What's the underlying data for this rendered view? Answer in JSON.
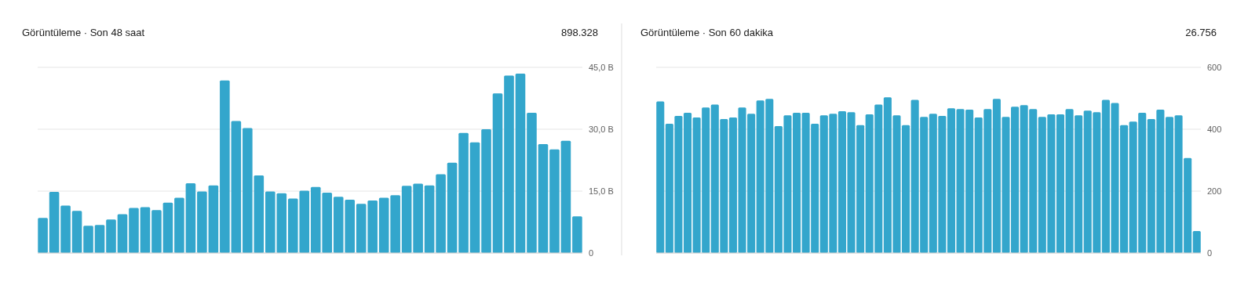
{
  "chart_data": [
    {
      "type": "bar",
      "title": "Görüntüleme · Son 48 saat",
      "annotations": [
        "898.328"
      ],
      "categories": [
        null,
        null,
        null,
        null,
        null,
        null,
        null,
        null,
        null,
        null,
        null,
        null,
        null,
        null,
        null,
        null,
        null,
        null,
        null,
        null,
        null,
        null,
        null,
        null,
        null,
        null,
        null,
        null,
        null,
        null,
        null,
        null,
        null,
        null,
        null,
        null,
        null,
        null,
        null,
        null,
        null,
        null,
        null,
        null,
        null,
        null,
        null,
        null
      ],
      "series": [
        {
          "color": "#33a6cc",
          "values": [
            8.5,
            14.8,
            11.5,
            10.2,
            6.6,
            6.8,
            8.1,
            9.4,
            10.9,
            11.1,
            10.4,
            12.2,
            13.4,
            16.9,
            14.9,
            16.4,
            41.8,
            32.0,
            30.3,
            18.8,
            14.9,
            14.5,
            13.2,
            15.1,
            16.0,
            14.6,
            13.6,
            12.9,
            11.9,
            12.7,
            13.4,
            14.0,
            16.3,
            16.8,
            16.4,
            19.1,
            21.9,
            29.1,
            26.8,
            30.0,
            38.7,
            43.0,
            43.5,
            34.0,
            26.4,
            25.1,
            27.2,
            8.9
          ]
        }
      ],
      "ylim": [
        0,
        45
      ],
      "yticks": [
        0,
        {
          "value": 15,
          "label": "15,0 B"
        },
        {
          "value": 30,
          "label": "30,0 B"
        },
        {
          "value": 45,
          "label": "45,0 B"
        }
      ],
      "grid": "y",
      "tick_labels": "y"
    },
    {
      "type": "bar",
      "title": "Görüntüleme · Son 60 dakika",
      "annotations": [
        "26.756"
      ],
      "categories": [
        null,
        null,
        null,
        null,
        null,
        null,
        null,
        null,
        null,
        null,
        null,
        null,
        null,
        null,
        null,
        null,
        null,
        null,
        null,
        null,
        null,
        null,
        null,
        null,
        null,
        null,
        null,
        null,
        null,
        null,
        null,
        null,
        null,
        null,
        null,
        null,
        null,
        null,
        null,
        null,
        null,
        null,
        null,
        null,
        null,
        null,
        null,
        null,
        null,
        null,
        null,
        null,
        null,
        null,
        null,
        null,
        null,
        null,
        null,
        null
      ],
      "series": [
        {
          "color": "#33a6cc",
          "values": [
            490,
            418,
            443,
            453,
            438,
            470,
            480,
            433,
            438,
            470,
            450,
            493,
            498,
            410,
            445,
            453,
            453,
            418,
            445,
            450,
            458,
            455,
            413,
            448,
            480,
            503,
            445,
            413,
            495,
            440,
            450,
            443,
            468,
            465,
            463,
            438,
            465,
            498,
            440,
            473,
            478,
            465,
            440,
            448,
            448,
            465,
            445,
            460,
            455,
            495,
            485,
            413,
            425,
            453,
            433,
            463,
            440,
            445,
            307,
            71
          ]
        }
      ],
      "ylim": [
        0,
        600
      ],
      "yticks": [
        0,
        200,
        400,
        600
      ],
      "grid": "y",
      "tick_labels": "y"
    }
  ]
}
